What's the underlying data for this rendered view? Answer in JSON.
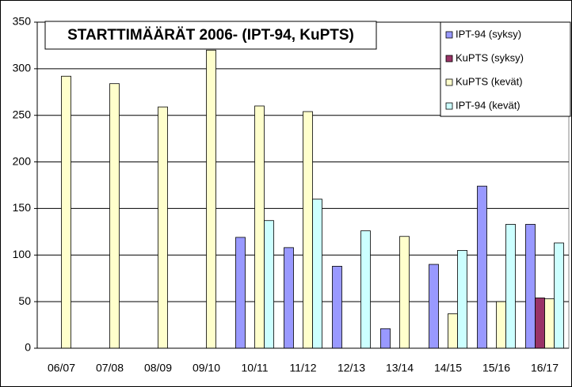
{
  "chart_data": {
    "type": "bar",
    "title": "STARTTIMÄÄRÄT 2006- (IPT-94, KuPTS)",
    "categories": [
      "06/07",
      "07/08",
      "08/09",
      "09/10",
      "10/11",
      "11/12",
      "12/13",
      "13/14",
      "14/15",
      "15/16",
      "16/17"
    ],
    "series": [
      {
        "name": "IPT-94 (syksy)",
        "color": "#9999ff",
        "values": [
          null,
          null,
          null,
          null,
          119,
          108,
          88,
          21,
          90,
          174,
          133
        ]
      },
      {
        "name": "KuPTS (syksy)",
        "color": "#993366",
        "values": [
          null,
          null,
          null,
          null,
          null,
          null,
          null,
          null,
          null,
          null,
          54
        ]
      },
      {
        "name": "KuPTS (kevät)",
        "color": "#ffffcc",
        "values": [
          292,
          284,
          259,
          320,
          260,
          254,
          null,
          120,
          37,
          50,
          53
        ]
      },
      {
        "name": "IPT-94 (kevät)",
        "color": "#ccffff",
        "values": [
          null,
          null,
          null,
          null,
          137,
          160,
          126,
          null,
          105,
          133,
          113
        ]
      }
    ],
    "ylim": [
      0,
      350
    ],
    "yticks": [
      0,
      50,
      100,
      150,
      200,
      250,
      300,
      350
    ],
    "grid": true,
    "legend": "top-right"
  }
}
